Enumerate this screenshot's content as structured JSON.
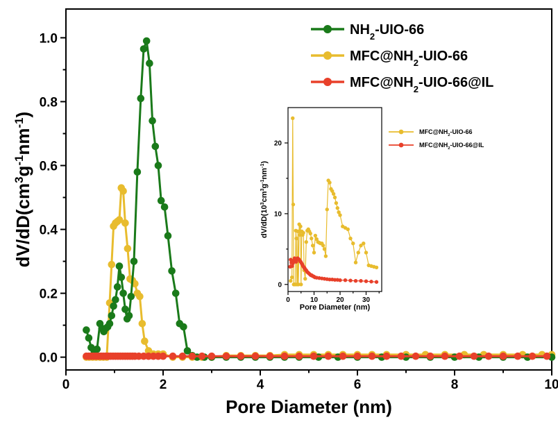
{
  "chart_data": [
    {
      "type": "line",
      "xlabel": "Pore Diameter (nm)",
      "ylabel": "dV/dD(cm³g⁻¹nm⁻¹)",
      "xlim": [
        0,
        10
      ],
      "ylim": [
        -0.04,
        1.09
      ],
      "xticks": [
        "0",
        "2",
        "4",
        "6",
        "8",
        "10"
      ],
      "yticks": [
        "0.0",
        "0.2",
        "0.4",
        "0.6",
        "0.8",
        "1.0"
      ],
      "legend_position": "top-right",
      "series": [
        {
          "name": "NH₂-UIO-66",
          "color": "#1a7a1a",
          "x": [
            0.42,
            0.47,
            0.52,
            0.58,
            0.64,
            0.7,
            0.74,
            0.78,
            0.82,
            0.86,
            0.9,
            0.94,
            0.98,
            1.02,
            1.06,
            1.1,
            1.14,
            1.18,
            1.22,
            1.26,
            1.3,
            1.34,
            1.4,
            1.47,
            1.54,
            1.6,
            1.66,
            1.72,
            1.78,
            1.84,
            1.9,
            1.96,
            2.03,
            2.1,
            2.18,
            2.26,
            2.34,
            2.42,
            2.5,
            2.6,
            2.7,
            2.85,
            3.0,
            3.3,
            3.6,
            3.9,
            4.2,
            4.5,
            4.8,
            5.2,
            5.6,
            6.0,
            6.5,
            7.0,
            7.5,
            8.0,
            8.5,
            9.0,
            9.5,
            10.0
          ],
          "y": [
            0.085,
            0.06,
            0.03,
            0.02,
            0.025,
            0.105,
            0.09,
            0.08,
            0.09,
            0.095,
            0.105,
            0.13,
            0.16,
            0.18,
            0.22,
            0.285,
            0.25,
            0.2,
            0.15,
            0.12,
            0.13,
            0.19,
            0.3,
            0.58,
            0.81,
            0.965,
            0.99,
            0.92,
            0.74,
            0.66,
            0.6,
            0.49,
            0.47,
            0.38,
            0.27,
            0.2,
            0.105,
            0.095,
            0.02,
            0.005,
            0.0,
            0.0,
            0.0,
            0.0,
            0.0,
            0.0,
            0.0,
            0.0,
            0.0,
            0.0,
            0.0,
            0.0,
            0.0,
            0.0,
            0.0,
            0.0,
            0.0,
            0.0,
            0.0,
            0.0
          ]
        },
        {
          "name": "MFC@NH₂-UIO-66",
          "color": "#e8bc2e",
          "x": [
            0.42,
            0.48,
            0.55,
            0.62,
            0.7,
            0.77,
            0.84,
            0.9,
            0.94,
            0.98,
            1.02,
            1.06,
            1.1,
            1.14,
            1.18,
            1.22,
            1.27,
            1.32,
            1.37,
            1.42,
            1.47,
            1.52,
            1.57,
            1.62,
            1.7,
            1.8,
            1.9,
            2.0,
            2.2,
            2.4,
            2.6,
            2.8,
            3.0,
            3.3,
            3.6,
            3.9,
            4.2,
            4.5,
            4.8,
            5.1,
            5.4,
            5.7,
            6.0,
            6.3,
            6.6,
            7.0,
            7.4,
            7.8,
            8.2,
            8.6,
            9.0,
            9.4,
            9.8,
            10.0
          ],
          "y": [
            0.0,
            0.0,
            0.0,
            0.0,
            0.0,
            0.0,
            0.0,
            0.17,
            0.29,
            0.41,
            0.42,
            0.425,
            0.43,
            0.53,
            0.52,
            0.42,
            0.34,
            0.245,
            0.24,
            0.23,
            0.2,
            0.19,
            0.105,
            0.05,
            0.02,
            0.01,
            0.01,
            0.01,
            0.0,
            0.0,
            0.0,
            0.0,
            0.0,
            0.005,
            0.005,
            0.005,
            0.005,
            0.008,
            0.008,
            0.008,
            0.008,
            0.008,
            0.008,
            0.008,
            0.008,
            0.008,
            0.008,
            0.008,
            0.008,
            0.008,
            0.008,
            0.008,
            0.008,
            0.008
          ]
        },
        {
          "name": "MFC@NH₂-UIO-66@IL",
          "color": "#e8402a",
          "x": [
            0.42,
            0.47,
            0.52,
            0.57,
            0.62,
            0.67,
            0.72,
            0.77,
            0.82,
            0.87,
            0.92,
            0.97,
            1.02,
            1.07,
            1.12,
            1.17,
            1.22,
            1.27,
            1.32,
            1.37,
            1.42,
            1.5,
            1.6,
            1.7,
            1.8,
            1.9,
            2.0,
            2.2,
            2.4,
            2.6,
            2.8,
            3.0,
            3.3,
            3.6,
            3.9,
            4.2,
            4.5,
            4.8,
            5.1,
            5.4,
            5.7,
            6.0,
            6.3,
            6.6,
            6.9,
            7.2,
            7.5,
            7.8,
            8.1,
            8.4,
            8.7,
            9.0,
            9.3,
            9.6,
            9.9
          ],
          "y": [
            0.003,
            0.003,
            0.003,
            0.003,
            0.003,
            0.003,
            0.003,
            0.003,
            0.003,
            0.003,
            0.003,
            0.003,
            0.003,
            0.003,
            0.003,
            0.003,
            0.003,
            0.003,
            0.003,
            0.003,
            0.003,
            0.003,
            0.003,
            0.003,
            0.003,
            0.003,
            0.003,
            0.003,
            0.003,
            0.003,
            0.003,
            0.003,
            0.003,
            0.003,
            0.003,
            0.003,
            0.003,
            0.003,
            0.003,
            0.003,
            0.003,
            0.003,
            0.003,
            0.003,
            0.003,
            0.003,
            0.003,
            0.003,
            0.003,
            0.003,
            0.003,
            0.003,
            0.003,
            0.003,
            0.003
          ]
        }
      ]
    },
    {
      "type": "line",
      "inset": true,
      "xlabel": "Pore Diameter (nm)",
      "ylabel": "dV/dD(10³cm³g⁻¹nm⁻¹)",
      "xlim": [
        0,
        36
      ],
      "ylim": [
        -1,
        25
      ],
      "xticks": [
        "0",
        "10",
        "20",
        "30"
      ],
      "yticks": [
        "0",
        "10",
        "20"
      ],
      "legend_position": "top-right",
      "series": [
        {
          "name": "MFC@NH₂-UIO-66",
          "color": "#e8bc2e",
          "x": [
            1.0,
            1.5,
            1.8,
            2.0,
            2.2,
            2.4,
            2.6,
            2.8,
            3.0,
            3.2,
            3.4,
            3.6,
            3.8,
            4.0,
            4.3,
            4.6,
            4.8,
            5.0,
            5.3,
            5.6,
            5.9,
            6.2,
            6.6,
            7.0,
            7.4,
            7.8,
            8.2,
            8.6,
            9.0,
            9.5,
            10.0,
            10.5,
            11.0,
            11.5,
            12.0,
            12.5,
            13.0,
            13.5,
            14.0,
            14.5,
            15.0,
            15.5,
            16.0,
            16.5,
            17.0,
            17.5,
            18.0,
            18.5,
            19.0,
            19.5,
            20.0,
            21.0,
            22.0,
            23.0,
            24.0,
            25.0,
            26.0,
            27.0,
            28.0,
            29.0,
            30.0,
            31.0,
            32.0,
            33.0,
            34.0
          ],
          "y": [
            0.5,
            1.0,
            23.5,
            11.3,
            0.0,
            0.0,
            0.0,
            0.0,
            7.6,
            6.5,
            0.0,
            0.0,
            7.5,
            0.0,
            8.5,
            7.0,
            8.2,
            0.0,
            7.5,
            7.0,
            7.3,
            2.0,
            0.8,
            6.0,
            7.6,
            7.8,
            7.5,
            7.2,
            6.5,
            5.5,
            4.5,
            6.9,
            6.4,
            6.0,
            5.9,
            5.8,
            5.8,
            5.5,
            5.0,
            4.0,
            10.6,
            14.7,
            14.4,
            13.5,
            13.2,
            12.8,
            12.3,
            11.5,
            10.8,
            10.2,
            9.8,
            8.2,
            8.0,
            7.8,
            6.5,
            5.8,
            3.1,
            4.5,
            5.5,
            5.8,
            4.5,
            2.7,
            2.6,
            2.5,
            2.4
          ],
          "labels": [
            "MFC@NH₂-UIO-66"
          ]
        },
        {
          "name": "MFC@NH₂-UIO-66@IL",
          "color": "#e8402a",
          "x": [
            0.8,
            1.0,
            1.3,
            1.6,
            1.9,
            2.2,
            2.5,
            2.8,
            3.1,
            3.4,
            3.7,
            4.0,
            4.3,
            4.6,
            4.9,
            5.2,
            5.5,
            5.8,
            6.1,
            6.4,
            6.7,
            7.0,
            7.3,
            7.6,
            7.9,
            8.2,
            8.5,
            8.8,
            9.1,
            9.4,
            9.7,
            10.0,
            10.3,
            11.0,
            12.0,
            13.0,
            14.0,
            15.0,
            16.0,
            17.0,
            18.0,
            19.0,
            20.0,
            22.0,
            24.0,
            26.0,
            28.0,
            30.0,
            32.0,
            34.0
          ],
          "y": [
            2.5,
            3.5,
            3.1,
            2.6,
            3.0,
            3.4,
            3.7,
            3.4,
            3.2,
            3.6,
            3.7,
            3.6,
            3.5,
            3.3,
            3.2,
            3.0,
            2.8,
            2.6,
            2.4,
            2.3,
            2.1,
            2.0,
            1.8,
            1.7,
            1.6,
            1.5,
            1.4,
            1.3,
            1.3,
            1.2,
            1.15,
            1.1,
            1.0,
            0.95,
            0.9,
            0.85,
            0.8,
            0.75,
            0.7,
            0.7,
            0.65,
            0.65,
            0.6,
            0.6,
            0.55,
            0.5,
            0.5,
            0.45,
            0.4,
            0.35
          ]
        }
      ]
    }
  ]
}
